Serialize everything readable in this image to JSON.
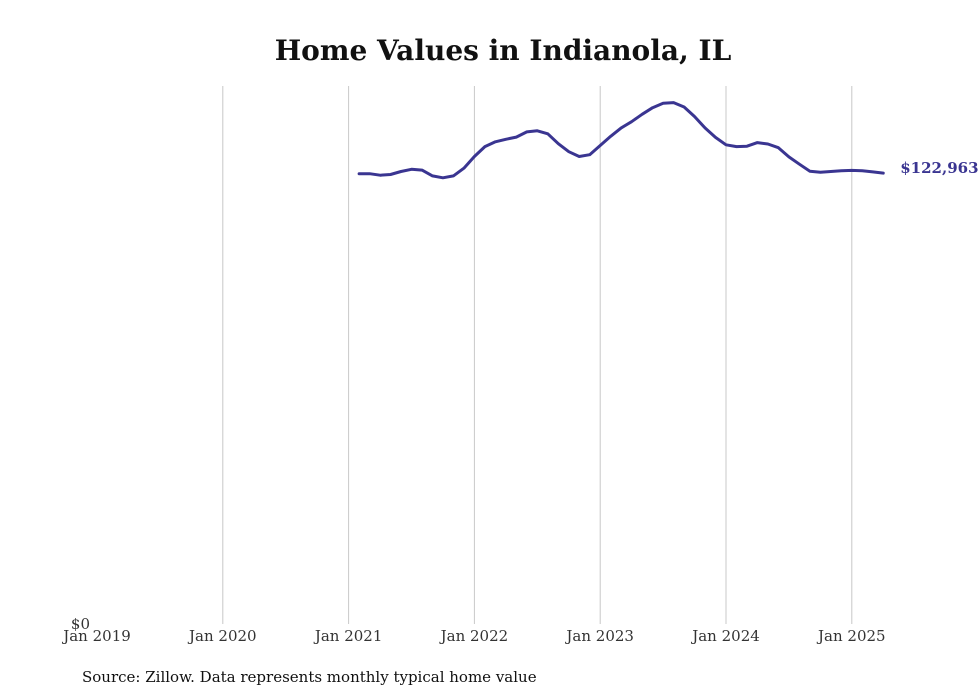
{
  "chart_data": {
    "type": "line",
    "title": "Home Values in Indianola, IL",
    "xlabel": "",
    "ylabel": "",
    "x_ticks": [
      "Jan 2019",
      "Jan 2020",
      "Jan 2021",
      "Jan 2022",
      "Jan 2023",
      "Jan 2024",
      "Jan 2025"
    ],
    "y_ticks": [
      "$0"
    ],
    "ylim": [
      0,
      150000
    ],
    "grid": "vertical",
    "line_color": "#3a3591",
    "end_label": "$122,963",
    "series": [
      {
        "values": [
          [
            "2021-02",
            122800
          ],
          [
            "2021-03",
            122800
          ],
          [
            "2021-04",
            122400
          ],
          [
            "2021-05",
            122600
          ],
          [
            "2021-06",
            123400
          ],
          [
            "2021-07",
            124000
          ],
          [
            "2021-08",
            123800
          ],
          [
            "2021-09",
            122200
          ],
          [
            "2021-10",
            121700
          ],
          [
            "2021-11",
            122200
          ],
          [
            "2021-12",
            124300
          ],
          [
            "2022-01",
            127500
          ],
          [
            "2022-02",
            130200
          ],
          [
            "2022-03",
            131500
          ],
          [
            "2022-04",
            132200
          ],
          [
            "2022-05",
            132800
          ],
          [
            "2022-06",
            134200
          ],
          [
            "2022-07",
            134500
          ],
          [
            "2022-08",
            133700
          ],
          [
            "2022-09",
            131000
          ],
          [
            "2022-10",
            128800
          ],
          [
            "2022-11",
            127500
          ],
          [
            "2022-12",
            128000
          ],
          [
            "2023-01",
            130500
          ],
          [
            "2023-02",
            133000
          ],
          [
            "2023-03",
            135300
          ],
          [
            "2023-04",
            137000
          ],
          [
            "2023-05",
            139000
          ],
          [
            "2023-06",
            140800
          ],
          [
            "2023-07",
            142000
          ],
          [
            "2023-08",
            142200
          ],
          [
            "2023-09",
            141000
          ],
          [
            "2023-10",
            138400
          ],
          [
            "2023-11",
            135300
          ],
          [
            "2023-12",
            132700
          ],
          [
            "2024-01",
            130700
          ],
          [
            "2024-02",
            130200
          ],
          [
            "2024-03",
            130300
          ],
          [
            "2024-04",
            131300
          ],
          [
            "2024-05",
            130900
          ],
          [
            "2024-06",
            129900
          ],
          [
            "2024-07",
            127400
          ],
          [
            "2024-08",
            125400
          ],
          [
            "2024-09",
            123500
          ],
          [
            "2024-10",
            123200
          ],
          [
            "2024-11",
            123400
          ],
          [
            "2024-12",
            123600
          ],
          [
            "2025-01",
            123700
          ],
          [
            "2025-02",
            123600
          ],
          [
            "2025-03",
            123300
          ],
          [
            "2025-04",
            122963
          ]
        ]
      }
    ]
  },
  "footer": {
    "source": "Source: Zillow. Data represents monthly typical home value"
  }
}
